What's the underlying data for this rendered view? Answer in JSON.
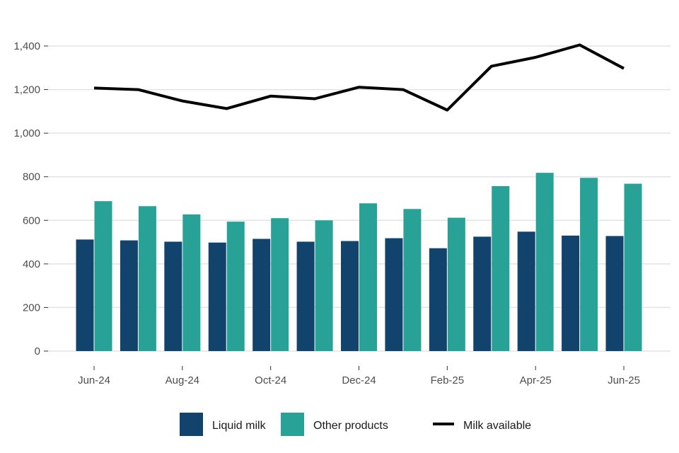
{
  "chart_data": {
    "type": "bar",
    "categories": [
      "Jun-24",
      "Jul-24",
      "Aug-24",
      "Sep-24",
      "Oct-24",
      "Nov-24",
      "Dec-24",
      "Jan-25",
      "Feb-25",
      "Mar-25",
      "Apr-25",
      "May-25",
      "Jun-25"
    ],
    "x_tick_labels": [
      "Jun-24",
      "Aug-24",
      "Oct-24",
      "Dec-24",
      "Feb-25",
      "Apr-25",
      "Jun-25"
    ],
    "series": [
      {
        "name": "Liquid milk",
        "type": "bar",
        "color": "#12436d",
        "values": [
          512,
          508,
          502,
          498,
          515,
          502,
          505,
          518,
          472,
          525,
          548,
          530,
          528
        ]
      },
      {
        "name": "Other products",
        "type": "bar",
        "color": "#28a197",
        "values": [
          688,
          665,
          627,
          594,
          610,
          600,
          678,
          652,
          612,
          757,
          818,
          795,
          768
        ]
      },
      {
        "name": "Milk available",
        "type": "line",
        "color": "#000000",
        "values": [
          1207,
          1200,
          1148,
          1113,
          1170,
          1158,
          1211,
          1200,
          1106,
          1307,
          1348,
          1405,
          1297
        ]
      }
    ],
    "y_ticks": [
      "0",
      "200",
      "400",
      "600",
      "800",
      "1,000",
      "1,200",
      "1,400"
    ],
    "title": "",
    "xlabel": "",
    "ylabel": "",
    "ylim": [
      0,
      1400
    ],
    "grid": "horizontal",
    "legend_position": "bottom"
  }
}
